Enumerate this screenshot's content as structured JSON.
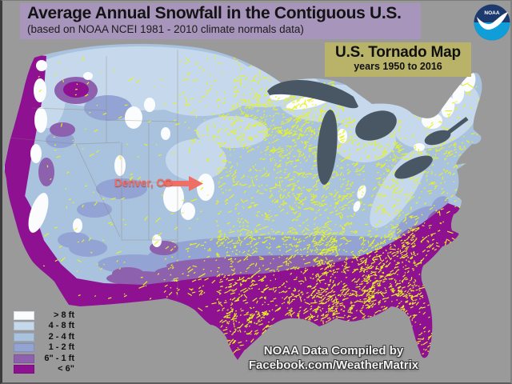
{
  "header": {
    "title": "Average Annual Snowfall in the Contiguous U.S.",
    "subtitle": "(based on NOAA NCEI 1981 - 2010 climate normals data)"
  },
  "tornado_box": {
    "title": "U.S. Tornado Map",
    "subtitle": "years 1950 to 2016"
  },
  "noaa_logo_text": "NOAA",
  "denver_label": "Denver, CO",
  "credit": {
    "line1": "NOAA Data Compiled by",
    "line2": "Facebook.com/WeatherMatrix"
  },
  "legend": {
    "items": [
      {
        "label": "> 8 ft",
        "color": "#fbfcfd"
      },
      {
        "label": "4 - 8 ft",
        "color": "#c6d9ec"
      },
      {
        "label": "2 - 4 ft",
        "color": "#a9c2de"
      },
      {
        "label": "1 - 2 ft",
        "color": "#93a3d3"
      },
      {
        "label": "6\" - 1 ft",
        "color": "#8d61ad"
      },
      {
        "label": "< 6\"",
        "color": "#8e1191"
      }
    ]
  },
  "colors": {
    "background": "#9a9a9a",
    "title_band": "#a795bb",
    "tornado_box_bg": "#b9b369",
    "lakes": "#485763",
    "tornado_tracks": "#e6f321",
    "denver": "#ef6f66",
    "noaa_navy": "#1c3a6e",
    "noaa_cyan": "#0f9ed8"
  }
}
